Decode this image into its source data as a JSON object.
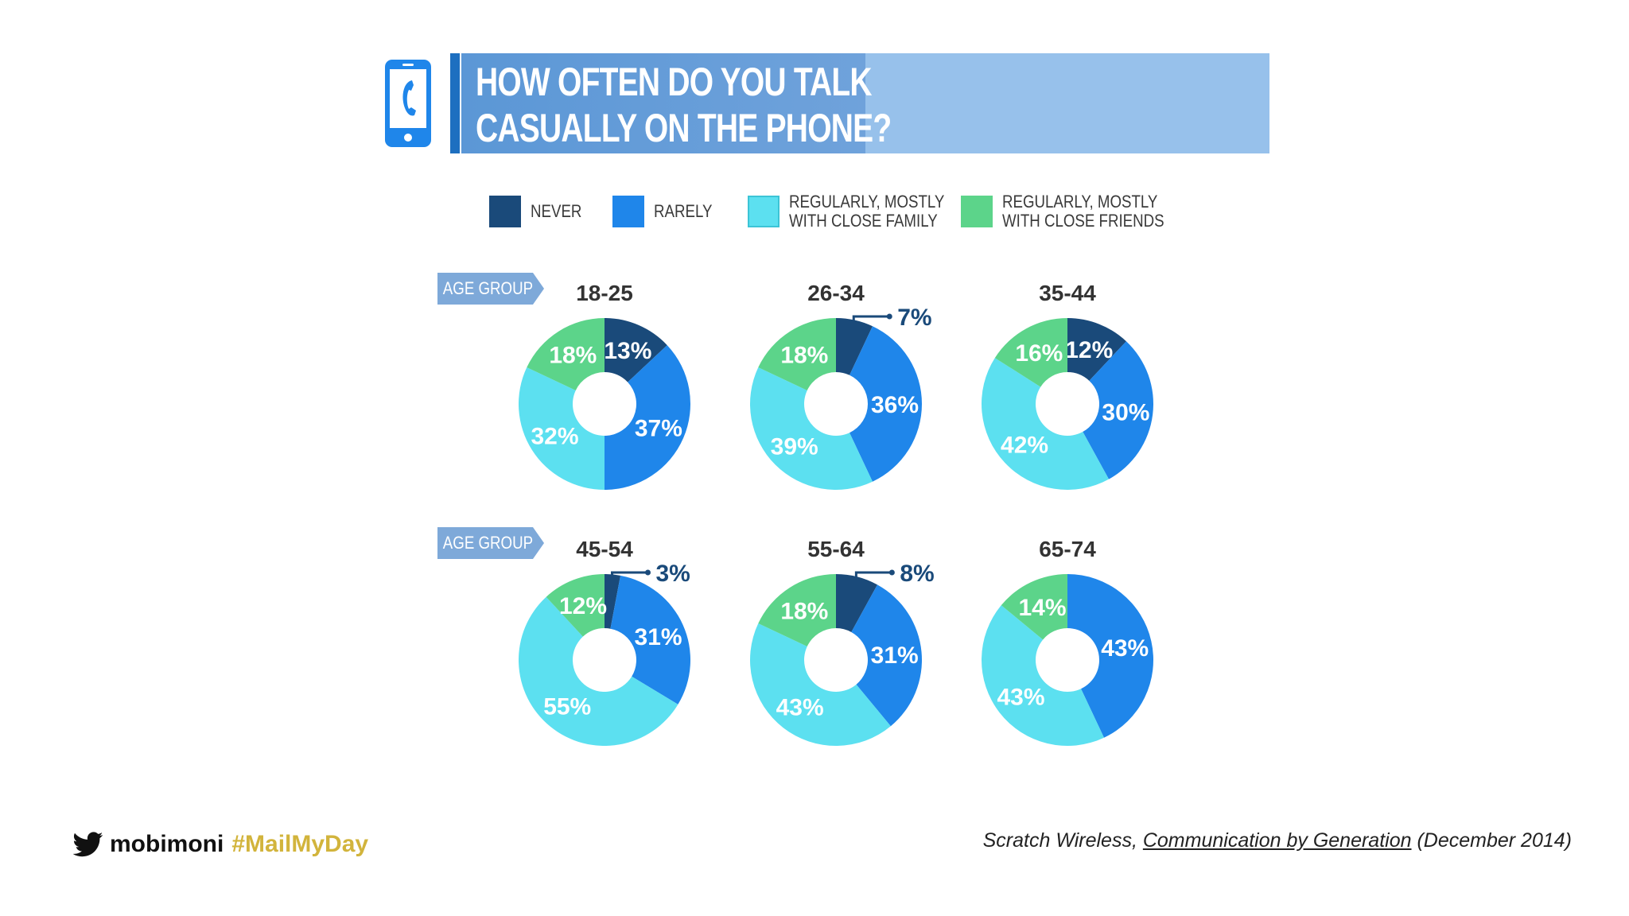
{
  "header": {
    "title_line1": "HOW OFTEN DO YOU TALK",
    "title_line2": "CASUALLY ON THE PHONE?",
    "icon": "phone-icon"
  },
  "legend": [
    {
      "label_line1": "NEVER",
      "label_line2": "",
      "color": "#1a4a7a"
    },
    {
      "label_line1": "RARELY",
      "label_line2": "",
      "color": "#1f86ea"
    },
    {
      "label_line1": "REGULARLY, MOSTLY",
      "label_line2": "WITH CLOSE FAMILY",
      "color": "#5ce0f0"
    },
    {
      "label_line1": "REGULARLY, MOSTLY",
      "label_line2": "WITH CLOSE FRIENDS",
      "color": "#5cd48a"
    }
  ],
  "age_tag_label": "AGE GROUP",
  "chart_data": {
    "type": "pie",
    "style": "donut-grid",
    "title": "HOW OFTEN DO YOU TALK CASUALLY ON THE PHONE?",
    "series_names": [
      "NEVER",
      "RARELY",
      "REGULARLY, MOSTLY WITH CLOSE FAMILY",
      "REGULARLY, MOSTLY WITH CLOSE FRIENDS"
    ],
    "colors": [
      "#1a4a7a",
      "#1f86ea",
      "#5ce0f0",
      "#5cd48a"
    ],
    "legend_position": "top",
    "groups": [
      {
        "label": "18-25",
        "values": [
          13,
          37,
          32,
          18
        ]
      },
      {
        "label": "26-34",
        "values": [
          7,
          36,
          39,
          18
        ]
      },
      {
        "label": "35-44",
        "values": [
          12,
          30,
          42,
          16
        ]
      },
      {
        "label": "45-54",
        "values": [
          3,
          31,
          55,
          12
        ]
      },
      {
        "label": "55-64",
        "values": [
          8,
          31,
          43,
          18
        ]
      },
      {
        "label": "65-74",
        "values": [
          0,
          43,
          43,
          14
        ]
      }
    ]
  },
  "footer": {
    "icon": "twitter-bird-icon",
    "brand": "mobimoni",
    "hashtag": "#MailMyDay",
    "source_prefix": "Scratch Wireless, ",
    "source_link": "Communication by Generation",
    "source_suffix": " (December 2014)"
  }
}
